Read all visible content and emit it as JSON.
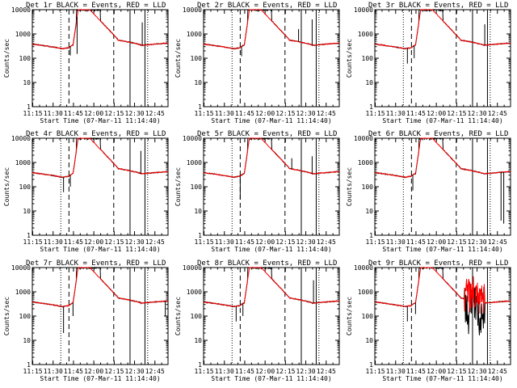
{
  "figure": {
    "xlabel": "Start Time (07-Mar-11 11:14:40)",
    "ylabel": "Counts/sec"
  },
  "colors": {
    "events": "#000000",
    "lld": "#ff0000",
    "axes": "#000000",
    "background": "#ffffff"
  },
  "axes_common": {
    "x_ticks": [
      "11:15",
      "11:30",
      "11:45",
      "12:00",
      "12:15",
      "12:30",
      "12:45"
    ],
    "x_range_minutes": [
      0,
      100
    ],
    "y_ticks": [
      "1",
      "10",
      "100",
      "1000",
      "10000"
    ],
    "y_scale": "log",
    "y_range": [
      1,
      10000
    ]
  },
  "chart_data": [
    {
      "type": "line",
      "title": "Det 1r BLACK = Events, RED = LLD",
      "panel": "1r",
      "variant": "normal",
      "spikes": [
        {
          "t": 28,
          "v": 130
        },
        {
          "t": 33,
          "v": 150
        },
        {
          "t": 81,
          "v": 3000
        }
      ]
    },
    {
      "type": "line",
      "title": "Det 2r BLACK = Events, RED = LLD",
      "panel": "2r",
      "variant": "normal",
      "spikes": [
        {
          "t": 28,
          "v": 120
        },
        {
          "t": 70,
          "v": 1600
        },
        {
          "t": 80,
          "v": 4000
        }
      ]
    },
    {
      "type": "line",
      "title": "Det 3r BLACK = Events, RED = LLD",
      "panel": "3r",
      "variant": "normal",
      "spikes": [
        {
          "t": 24,
          "v": 60
        },
        {
          "t": 29,
          "v": 100
        },
        {
          "t": 81,
          "v": 2500
        }
      ]
    },
    {
      "type": "line",
      "title": "Det 4r BLACK = Events, RED = LLD",
      "panel": "4r",
      "variant": "normal",
      "spikes": [
        {
          "t": 23,
          "v": 60
        },
        {
          "t": 28,
          "v": 100
        },
        {
          "t": 80,
          "v": 3000
        }
      ]
    },
    {
      "type": "line",
      "title": "Det 5r BLACK = Events, RED = LLD",
      "panel": "5r",
      "variant": "normal",
      "spikes": [
        {
          "t": 27,
          "v": 30
        },
        {
          "t": 65,
          "v": 1500
        },
        {
          "t": 80,
          "v": 1800
        }
      ]
    },
    {
      "type": "line",
      "title": "Det 6r BLACK = Events, RED = LLD",
      "panel": "6r",
      "variant": "normal",
      "spikes": [
        {
          "t": 28,
          "v": 70
        },
        {
          "t": 93,
          "v": 4
        },
        {
          "t": 95,
          "v": 3
        }
      ]
    },
    {
      "type": "line",
      "title": "Det 7r BLACK = Events, RED = LLD",
      "panel": "7r",
      "variant": "normal",
      "spikes": [
        {
          "t": 23,
          "v": 20
        },
        {
          "t": 30,
          "v": 100
        },
        {
          "t": 98,
          "v": 100
        }
      ]
    },
    {
      "type": "line",
      "title": "Det 8r BLACK = Events, RED = LLD",
      "panel": "8r",
      "variant": "normal",
      "spikes": [
        {
          "t": 24,
          "v": 60
        },
        {
          "t": 29,
          "v": 100
        },
        {
          "t": 81,
          "v": 3000
        }
      ]
    },
    {
      "type": "line",
      "title": "Det 9r BLACK = Events, RED = LLD",
      "panel": "9r",
      "variant": "noisy",
      "spikes": [
        {
          "t": 24,
          "v": 60
        },
        {
          "t": 30,
          "v": 120
        }
      ]
    }
  ]
}
